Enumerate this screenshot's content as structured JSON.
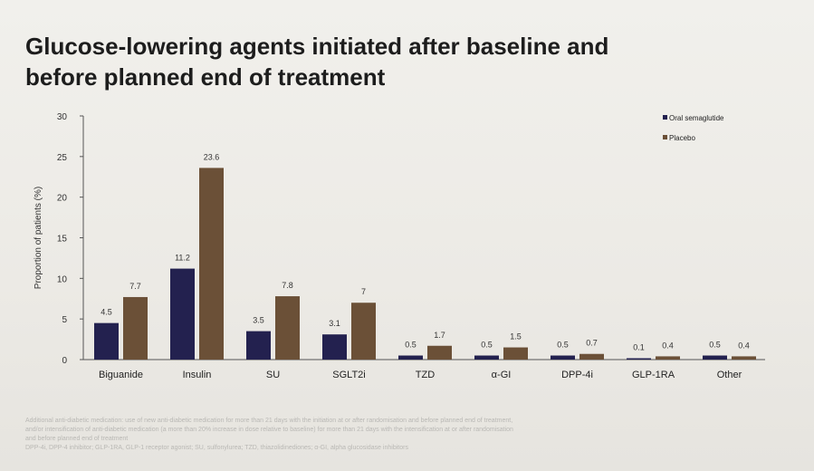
{
  "slide": {
    "title_line1": "Glucose-lowering agents initiated after baseline and",
    "title_line2": "before planned end of treatment",
    "footnote": [
      "Additional anti-diabetic medication: use of new anti-diabetic medication for more than 21 days with the initiation at or after randomisation and before planned end of treatment,",
      "and/or intensification of anti-diabetic medication (a more than 20% increase in dose relative to baseline) for more than 21 days with the intensification at or after randomisation",
      "and before planned end of treatment",
      "DPP-4i, DPP-4 inhibitor; GLP-1RA, GLP-1 receptor agonist; SU, sulfonylurea; TZD, thiazolidinediones; α-GI, alpha glucosidase inhibitors"
    ]
  },
  "chart_data": {
    "type": "bar",
    "title": "",
    "xlabel": "",
    "ylabel": "Proportion of patients (%)",
    "ylim": [
      0,
      30
    ],
    "yticks": [
      "0",
      "5",
      "10",
      "15",
      "20",
      "25",
      "30"
    ],
    "categories": [
      "Biguanide",
      "Insulin",
      "SU",
      "SGLT2i",
      "TZD",
      "α-GI",
      "DPP-4i",
      "GLP-1RA",
      "Other"
    ],
    "series": [
      {
        "name": "Oral semaglutide",
        "color": "#23214f",
        "values": [
          4.5,
          11.2,
          3.5,
          3.1,
          0.5,
          0.5,
          0.5,
          0.1,
          0.5
        ],
        "labels": [
          "4.5",
          "11.2",
          "3.5",
          "3.1",
          "0.5",
          "0.5",
          "0.5",
          "0.1",
          "0.5"
        ]
      },
      {
        "name": "Placebo",
        "color": "#6b5037",
        "values": [
          7.7,
          23.6,
          7.8,
          7,
          1.7,
          1.5,
          0.7,
          0.4,
          0.4
        ],
        "labels": [
          "7.7",
          "23.6",
          "7.8",
          "7",
          "1.7",
          "1.5",
          "0.7",
          "0.4",
          "0.4"
        ]
      }
    ],
    "legend_position": "top-right",
    "grid": false
  }
}
